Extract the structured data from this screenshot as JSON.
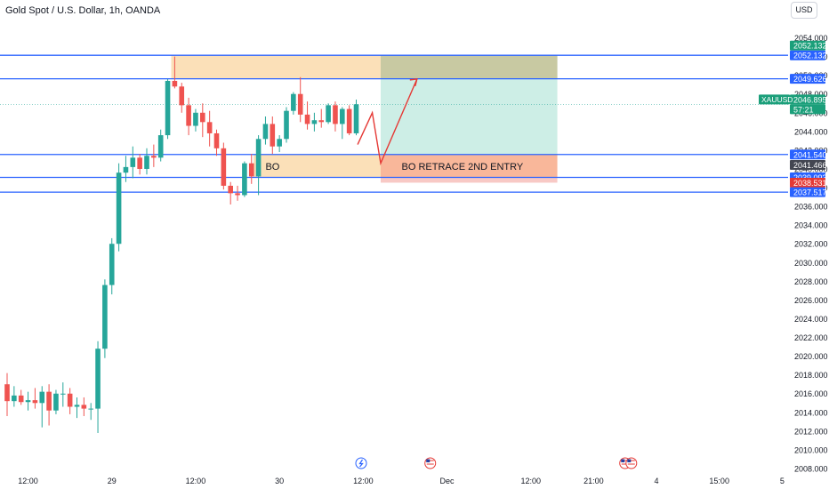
{
  "header": {
    "title": "Gold Spot / U.S. Dollar, 1h, OANDA",
    "currency": "USD"
  },
  "colors": {
    "up": "#26a69a",
    "down": "#ef5350",
    "level_line": "#2962ff",
    "supply_zone": "#fbe0b8",
    "target_zone": "#cdeee6",
    "stop_zone": "#f8c9c5",
    "bo_retrace_zone": "#f9b79a",
    "overlap_zone": "#c8c9a2",
    "projection": "#e53935"
  },
  "chart_data": {
    "type": "candlestick",
    "symbol": "XAUUSD",
    "title": "Gold Spot / U.S. Dollar, 1h, OANDA",
    "ylim": [
      2008,
      2055
    ],
    "y_ticks": [
      "2054.000",
      "2052.000",
      "2050.000",
      "2048.000",
      "2046.000",
      "2044.000",
      "2042.000",
      "2040.000",
      "2038.000",
      "2036.000",
      "2034.000",
      "2032.000",
      "2030.000",
      "2028.000",
      "2026.000",
      "2024.000",
      "2022.000",
      "2020.000",
      "2018.000",
      "2016.000",
      "2014.000",
      "2012.000",
      "2010.000",
      "2008.000"
    ],
    "x_ticks": [
      {
        "label": "12:00",
        "bar": 3
      },
      {
        "label": "29",
        "bar": 15
      },
      {
        "label": "12:00",
        "bar": 27
      },
      {
        "label": "30",
        "bar": 39
      },
      {
        "label": "12:00",
        "bar": 51
      },
      {
        "label": "Dec",
        "bar": 63
      },
      {
        "label": "12:00",
        "bar": 75
      },
      {
        "label": "21:00",
        "bar": 84
      },
      {
        "label": "4",
        "bar": 93
      },
      {
        "label": "15:00",
        "bar": 102
      },
      {
        "label": "5",
        "bar": 111
      }
    ],
    "candles": [
      [
        2017.0,
        2018.2,
        2013.6,
        2015.2
      ],
      [
        2015.2,
        2016.8,
        2014.6,
        2015.8
      ],
      [
        2015.8,
        2016.4,
        2014.8,
        2015.1
      ],
      [
        2015.1,
        2016.2,
        2014.2,
        2015.3
      ],
      [
        2015.3,
        2016.6,
        2014.4,
        2015.0
      ],
      [
        2015.0,
        2016.8,
        2012.4,
        2016.2
      ],
      [
        2016.2,
        2017.0,
        2012.6,
        2014.2
      ],
      [
        2014.2,
        2016.4,
        2013.8,
        2016.0
      ],
      [
        2016.0,
        2017.2,
        2014.6,
        2016.0
      ],
      [
        2016.0,
        2016.6,
        2013.8,
        2014.6
      ],
      [
        2014.6,
        2015.6,
        2013.4,
        2014.8
      ],
      [
        2014.8,
        2015.6,
        2013.6,
        2014.4
      ],
      [
        2014.4,
        2015.0,
        2013.2,
        2014.4
      ],
      [
        2014.4,
        2021.6,
        2011.8,
        2020.8
      ],
      [
        2020.8,
        2028.2,
        2019.8,
        2027.6
      ],
      [
        2027.6,
        2032.6,
        2026.6,
        2032.0
      ],
      [
        2032.0,
        2040.6,
        2031.2,
        2039.6
      ],
      [
        2039.6,
        2041.4,
        2038.6,
        2040.2
      ],
      [
        2040.2,
        2042.4,
        2039.0,
        2041.2
      ],
      [
        2041.2,
        2041.6,
        2039.4,
        2040.0
      ],
      [
        2040.0,
        2042.2,
        2039.4,
        2041.4
      ],
      [
        2041.4,
        2042.6,
        2040.2,
        2041.2
      ],
      [
        2041.2,
        2044.2,
        2040.8,
        2043.6
      ],
      [
        2043.6,
        2049.6,
        2043.2,
        2049.4
      ],
      [
        2049.4,
        2052.0,
        2048.6,
        2048.8
      ],
      [
        2048.8,
        2049.2,
        2046.0,
        2046.8
      ],
      [
        2046.8,
        2047.6,
        2043.6,
        2044.6
      ],
      [
        2044.6,
        2046.4,
        2044.0,
        2046.0
      ],
      [
        2046.0,
        2047.0,
        2043.4,
        2045.0
      ],
      [
        2045.0,
        2046.2,
        2042.4,
        2043.8
      ],
      [
        2043.8,
        2044.2,
        2041.4,
        2042.2
      ],
      [
        2042.2,
        2042.8,
        2037.8,
        2038.2
      ],
      [
        2038.2,
        2038.6,
        2036.2,
        2037.4
      ],
      [
        2037.4,
        2038.2,
        2036.6,
        2037.2
      ],
      [
        2037.2,
        2040.8,
        2037.0,
        2040.6
      ],
      [
        2040.6,
        2041.6,
        2038.4,
        2039.2
      ],
      [
        2039.2,
        2043.6,
        2037.2,
        2043.2
      ],
      [
        2043.2,
        2045.6,
        2042.6,
        2044.8
      ],
      [
        2044.8,
        2045.6,
        2041.6,
        2042.4
      ],
      [
        2042.4,
        2043.6,
        2041.8,
        2043.2
      ],
      [
        2043.2,
        2046.6,
        2042.8,
        2046.2
      ],
      [
        2046.2,
        2048.2,
        2045.8,
        2048.0
      ],
      [
        2048.0,
        2049.8,
        2045.0,
        2045.8
      ],
      [
        2045.8,
        2047.2,
        2044.2,
        2044.8
      ],
      [
        2044.8,
        2046.0,
        2044.0,
        2045.2
      ],
      [
        2045.2,
        2046.4,
        2044.4,
        2045.0
      ],
      [
        2045.0,
        2047.0,
        2044.8,
        2046.8
      ],
      [
        2046.8,
        2047.2,
        2044.0,
        2044.8
      ],
      [
        2044.8,
        2046.6,
        2043.2,
        2046.4
      ],
      [
        2046.4,
        2046.8,
        2043.6,
        2043.8
      ],
      [
        2043.8,
        2047.4,
        2043.6,
        2046.9
      ]
    ],
    "levels": [
      {
        "name": "level-2052-132",
        "price": 2052.132,
        "label": "2052.132"
      },
      {
        "name": "level-2049-626",
        "price": 2049.626,
        "label": "2049.626"
      },
      {
        "name": "level-2041-540",
        "price": 2041.54,
        "label": "2041.540"
      },
      {
        "name": "level-2039-093",
        "price": 2039.093,
        "label": "2039.093"
      },
      {
        "name": "level-2037-517",
        "price": 2037.517,
        "label": "2037.517"
      }
    ],
    "price_labels": [
      {
        "name": "label-2052-132-top",
        "text": "2052.132",
        "price": 2052.132,
        "style": "green",
        "offset": -1
      },
      {
        "name": "label-2052-132",
        "text": "2052.132",
        "price": 2052.132,
        "style": "blue",
        "offset": 0
      },
      {
        "name": "label-2049-626",
        "text": "2049.626",
        "price": 2049.626,
        "style": "blue",
        "offset": 0
      },
      {
        "name": "label-2046-895",
        "text": "2046.895",
        "price": 2046.895,
        "style": "green",
        "offset": -0.5
      },
      {
        "name": "label-countdown",
        "text": "57:21",
        "price": 2046.895,
        "style": "green",
        "offset": 0.5
      },
      {
        "name": "label-2041-540",
        "text": "2041.540",
        "price": 2041.54,
        "style": "blue",
        "offset": 0
      },
      {
        "name": "label-2041-466",
        "text": "2041.466",
        "price": 2041.466,
        "style": "dark",
        "offset": 1
      },
      {
        "name": "label-2039-093",
        "text": "2039.093",
        "price": 2039.093,
        "style": "blue",
        "offset": 0
      },
      {
        "name": "label-2038-531",
        "text": "2038.531",
        "price": 2038.531,
        "style": "red",
        "offset": 0
      },
      {
        "name": "label-2037-517",
        "text": "2037.517",
        "price": 2037.517,
        "style": "blue",
        "offset": 0
      }
    ],
    "symbol_tag": {
      "text": "XAUUSD",
      "price": 2046.895
    },
    "current_price": 2046.895,
    "annotations": [
      {
        "name": "bo-text",
        "text": "BO",
        "bar": 37,
        "price": 2040.3
      },
      {
        "name": "bo-retrace-text",
        "text": "BO RETRACE 2ND ENTRY",
        "bar": 56.5,
        "price": 2040.3
      }
    ],
    "zones": [
      {
        "name": "supply-zone",
        "x1": 23.5,
        "x2": 53.5,
        "y1": 2052.132,
        "y2": 2049.626,
        "color": "supply_zone"
      },
      {
        "name": "bo-zone",
        "x1": 35.3,
        "x2": 53.5,
        "y1": 2041.54,
        "y2": 2039.093,
        "color": "supply_zone"
      },
      {
        "name": "target-zone",
        "x1": 53.5,
        "x2": 78.8,
        "y1": 2052.132,
        "y2": 2041.54,
        "color": "target_zone"
      },
      {
        "name": "overlap-zone",
        "x1": 53.5,
        "x2": 78.8,
        "y1": 2052.132,
        "y2": 2049.626,
        "color": "overlap_zone"
      },
      {
        "name": "stop-zone",
        "x1": 53.5,
        "x2": 78.8,
        "y1": 2039.093,
        "y2": 2038.531,
        "color": "stop_zone"
      },
      {
        "name": "bo-retrace-zone",
        "x1": 53.5,
        "x2": 78.8,
        "y1": 2041.54,
        "y2": 2039.093,
        "color": "bo_retrace_zone"
      }
    ],
    "projection_path": [
      {
        "bar": 50.2,
        "price": 2042.6
      },
      {
        "bar": 52.3,
        "price": 2046.0
      },
      {
        "bar": 53.5,
        "price": 2040.6
      },
      {
        "bar": 58.7,
        "price": 2049.6
      }
    ],
    "event_icons": [
      {
        "name": "lightning-icon",
        "bar": 50.7
      },
      {
        "name": "us-flag-icon",
        "bar": 60.6
      },
      {
        "name": "us-flag-icon",
        "bar": 88.5
      },
      {
        "name": "us-flag-icon",
        "bar": 89.4
      }
    ],
    "grid": false
  }
}
